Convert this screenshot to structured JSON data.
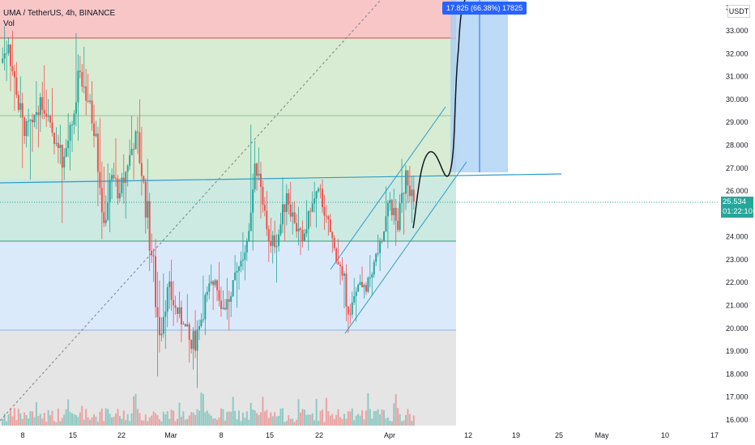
{
  "header": {
    "symbol_line": "UMA / TetherUS, 4h, BINANCE",
    "indicator": "Vol"
  },
  "currency_label": "USDT",
  "last_price": "25.534",
  "countdown": "01:22:10",
  "projection_label": "17.825 (66.38%) 17825",
  "colors": {
    "up": "#26a69a",
    "down": "#ef5350",
    "zone_red": "#f8c6c6",
    "zone_green": "#d8ecd3",
    "zone_teal": "#cce9e2",
    "zone_blue": "#dbeafb",
    "zone_grey": "#e5e5e5",
    "trendline": "#2a9cc8",
    "projection": "#2962ff"
  },
  "chart_data": {
    "type": "candlestick",
    "y_axis": {
      "range": [
        15.9,
        34.2
      ],
      "tick_labels": [
        "16.000",
        "17.000",
        "18.000",
        "19.000",
        "20.000",
        "21.000",
        "22.000",
        "23.000",
        "24.000",
        "25.000",
        "26.000",
        "27.000",
        "28.000",
        "29.000",
        "30.000",
        "31.000",
        "32.000",
        "33.000",
        "3"
      ]
    },
    "x_axis": {
      "tick_labels": [
        "8",
        "15",
        "22",
        "Mar",
        "8",
        "15",
        "22",
        "Apr",
        "12",
        "19",
        "25",
        "May",
        "10",
        "17"
      ]
    },
    "series": [
      {
        "values": [
          [
            31.6,
            33.2,
            30.8,
            32.4
          ],
          [
            32.4,
            33.0,
            29.5,
            30.2
          ],
          [
            30.2,
            31.0,
            27.0,
            28.4
          ],
          [
            28.4,
            29.6,
            26.5,
            29.0
          ],
          [
            29.0,
            30.8,
            27.9,
            30.1
          ],
          [
            30.1,
            31.5,
            28.8,
            29.3
          ],
          [
            29.3,
            30.5,
            27.6,
            28.1
          ],
          [
            28.1,
            28.9,
            24.6,
            27.5
          ],
          [
            27.5,
            29.4,
            26.9,
            28.9
          ],
          [
            28.9,
            32.9,
            28.2,
            31.2
          ],
          [
            31.2,
            32.3,
            29.3,
            29.9
          ],
          [
            29.9,
            30.8,
            27.9,
            28.5
          ],
          [
            28.5,
            29.2,
            23.9,
            24.6
          ],
          [
            24.6,
            27.2,
            24.2,
            26.7
          ],
          [
            26.7,
            28.3,
            25.4,
            25.9
          ],
          [
            25.9,
            27.6,
            24.8,
            27.1
          ],
          [
            27.1,
            29.3,
            26.5,
            28.6
          ],
          [
            28.6,
            30.0,
            25.8,
            26.4
          ],
          [
            26.4,
            27.4,
            22.5,
            23.2
          ],
          [
            23.2,
            23.9,
            17.9,
            19.7
          ],
          [
            19.7,
            22.4,
            19.1,
            21.8
          ],
          [
            21.8,
            23.0,
            20.1,
            20.9
          ],
          [
            20.9,
            21.6,
            19.4,
            20.2
          ],
          [
            20.2,
            21.5,
            18.5,
            19.1
          ],
          [
            19.1,
            20.8,
            17.4,
            20.1
          ],
          [
            20.1,
            22.3,
            19.7,
            21.6
          ],
          [
            21.6,
            22.8,
            20.8,
            22.1
          ],
          [
            22.1,
            22.9,
            20.5,
            20.9
          ],
          [
            20.9,
            22.2,
            19.9,
            21.4
          ],
          [
            21.4,
            23.2,
            20.9,
            22.7
          ],
          [
            22.7,
            24.2,
            22.1,
            23.8
          ],
          [
            23.8,
            28.9,
            23.4,
            27.2
          ],
          [
            27.2,
            27.9,
            24.8,
            25.4
          ],
          [
            25.4,
            26.0,
            22.9,
            23.6
          ],
          [
            23.6,
            24.7,
            22.0,
            24.1
          ],
          [
            24.1,
            26.6,
            23.8,
            25.9
          ],
          [
            25.9,
            26.4,
            24.1,
            24.6
          ],
          [
            24.6,
            25.3,
            23.2,
            23.8
          ],
          [
            23.8,
            25.6,
            23.4,
            25.1
          ],
          [
            25.1,
            26.4,
            24.4,
            26.1
          ],
          [
            26.1,
            26.5,
            24.3,
            24.9
          ],
          [
            24.9,
            25.0,
            23.3,
            23.5
          ],
          [
            23.5,
            23.9,
            21.9,
            22.3
          ],
          [
            22.3,
            22.8,
            19.8,
            20.6
          ],
          [
            20.6,
            22.2,
            20.3,
            21.9
          ],
          [
            21.9,
            22.7,
            21.3,
            21.6
          ],
          [
            21.6,
            23.2,
            21.4,
            22.9
          ],
          [
            22.9,
            24.1,
            22.5,
            23.8
          ],
          [
            23.8,
            26.2,
            23.5,
            25.6
          ],
          [
            25.6,
            26.1,
            23.6,
            24.3
          ],
          [
            24.3,
            27.4,
            24.1,
            26.9
          ],
          [
            26.9,
            27.1,
            24.6,
            25.534
          ]
        ]
      }
    ]
  }
}
